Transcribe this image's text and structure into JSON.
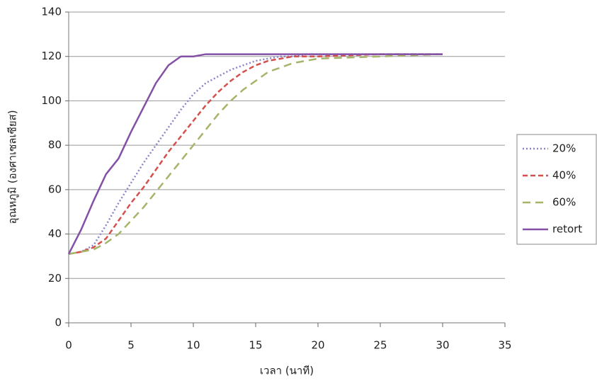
{
  "chart_data": {
    "type": "line",
    "xlabel": "เวลา (นาที)",
    "ylabel": "อุณหภูมิ (องศาเซลเซียส)",
    "x": [
      0,
      1,
      2,
      3,
      4,
      5,
      6,
      7,
      8,
      9,
      10,
      11,
      12,
      13,
      14,
      15,
      16,
      17,
      18,
      19,
      20,
      25,
      30
    ],
    "series": [
      {
        "name": "20%",
        "color": "#8a86c8",
        "dash": "2,3",
        "values": [
          31,
          32,
          35,
          44,
          54,
          63,
          72,
          80,
          88,
          96,
          103,
          108,
          111,
          114,
          116,
          118,
          119,
          120,
          120,
          121,
          121,
          121,
          121
        ]
      },
      {
        "name": "40%",
        "color": "#d4504c",
        "dash": "7,4",
        "values": [
          31,
          32,
          34,
          38,
          46,
          54,
          61,
          69,
          77,
          84,
          91,
          98,
          104,
          109,
          113,
          116,
          118,
          119,
          120,
          120,
          120,
          121,
          121
        ]
      },
      {
        "name": "60%",
        "color": "#a6b46a",
        "dash": "11,7",
        "values": [
          31,
          32,
          33,
          36,
          40,
          46,
          52,
          59,
          66,
          73,
          80,
          87,
          94,
          100,
          105,
          109,
          113,
          115,
          117,
          118,
          119,
          120,
          121
        ]
      },
      {
        "name": "retort",
        "color": "#8450a6",
        "dash": "",
        "values": [
          31,
          42,
          55,
          67,
          74,
          86,
          97,
          108,
          116,
          120,
          120,
          121,
          121,
          121,
          121,
          121,
          121,
          121,
          121,
          121,
          121,
          121,
          121
        ]
      }
    ],
    "xlim": [
      0,
      35
    ],
    "xticks": [
      0,
      5,
      10,
      15,
      20,
      25,
      30,
      35
    ],
    "ylim": [
      0,
      140
    ],
    "yticks": [
      0,
      20,
      40,
      60,
      80,
      100,
      120,
      140
    ],
    "grid": true,
    "legend": "right"
  }
}
